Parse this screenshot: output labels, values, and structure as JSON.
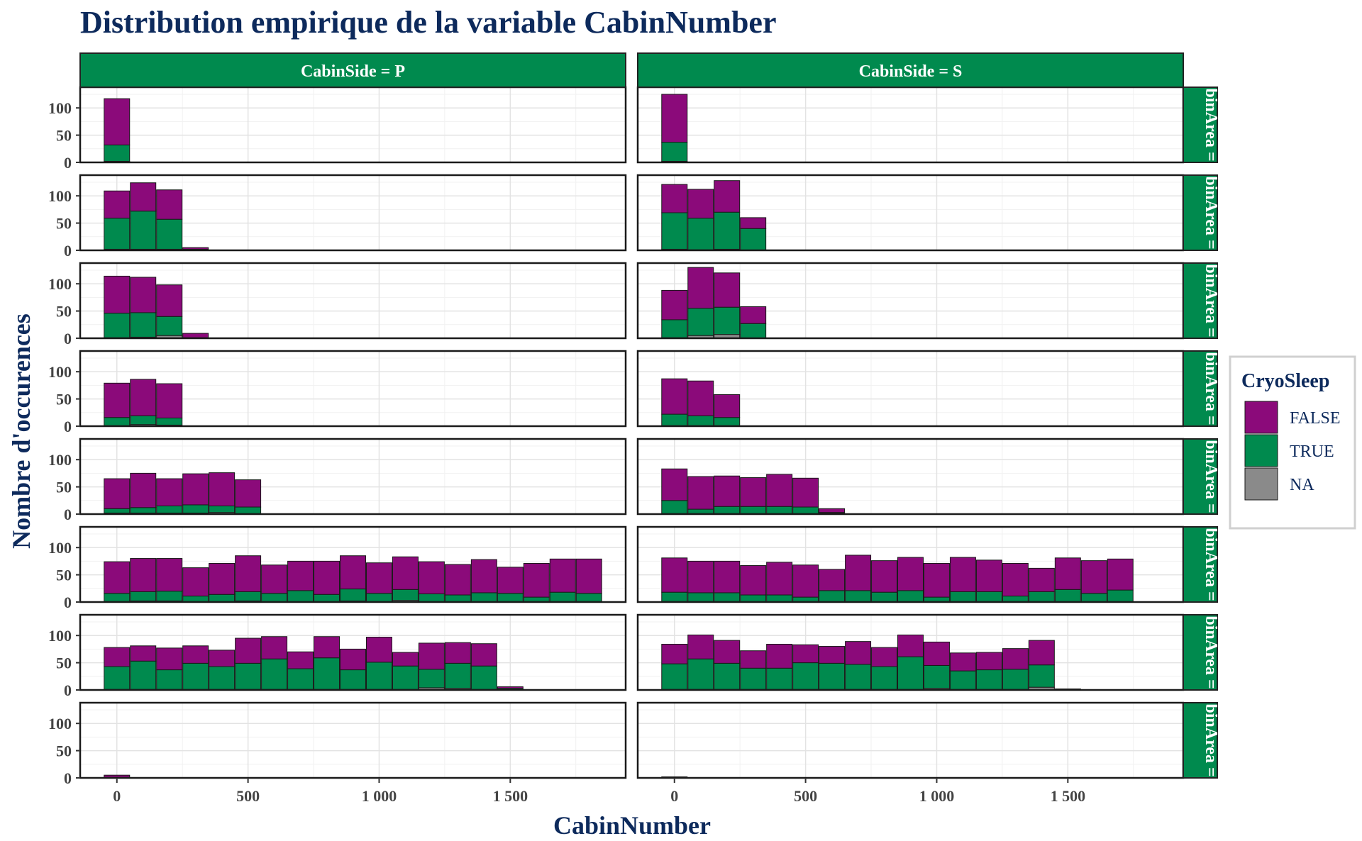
{
  "chart_data": {
    "type": "bar",
    "stacked": true,
    "title": "Distribution empirique de la variable CabinNumber",
    "xlabel": "CabinNumber",
    "ylabel": "Nombre d'occurences",
    "x_ticks": [
      0,
      500,
      1000,
      1500
    ],
    "x_tick_labels": [
      "0",
      "500",
      "1 000",
      "1 500"
    ],
    "y_ticks": [
      0,
      50,
      100
    ],
    "y_tick_labels": [
      "0",
      "50",
      "100"
    ],
    "xlim": [
      -140,
      1940
    ],
    "ylim": [
      0,
      138
    ],
    "bin_width": 100,
    "grid": true,
    "legend": {
      "title": "CryoSleep",
      "position": "right",
      "entries": [
        {
          "label": "FALSE",
          "color": "#8b0a7a"
        },
        {
          "label": "TRUE",
          "color": "#008a4e"
        },
        {
          "label": "NA",
          "color": "#8a8a8a"
        }
      ]
    },
    "columns": [
      "CabinSide = P",
      "CabinSide = S"
    ],
    "row_strip_label": "binArea = ",
    "colors": {
      "strip": "#008a4e",
      "FALSE": "#8b0a7a",
      "TRUE": "#008a4e",
      "NA": "#8a8a8a"
    },
    "panels": [
      [
        {
          "x": [
            0
          ],
          "na": [
            2
          ],
          "true_": [
            30
          ],
          "false_": [
            85
          ]
        }
      ],
      [
        {
          "x": [
            0
          ],
          "na": [
            2
          ],
          "true_": [
            35
          ],
          "false_": [
            88
          ]
        },
        {
          "x": [
            100
          ],
          "na": [
            2
          ],
          "true_": [
            2
          ],
          "false_": [
            10
          ]
        }
      ],
      [
        {
          "x": [
            0,
            100,
            200,
            300
          ],
          "na": [
            2,
            2,
            2,
            1
          ],
          "true_": [
            57,
            70,
            55,
            1
          ],
          "false_": [
            50,
            52,
            54,
            3
          ]
        }
      ],
      [
        {
          "x": [
            0,
            100,
            200,
            300
          ],
          "na": [
            2,
            1,
            2,
            0
          ],
          "true_": [
            67,
            58,
            68,
            40
          ],
          "false_": [
            52,
            53,
            58,
            20
          ]
        }
      ],
      [
        {
          "x": [
            0,
            100,
            200,
            300
          ],
          "na": [
            1,
            2,
            5,
            1
          ],
          "true_": [
            45,
            45,
            35,
            0
          ],
          "false_": [
            68,
            65,
            58,
            8
          ]
        }
      ],
      [
        {
          "x": [
            0,
            100,
            200,
            300
          ],
          "na": [
            1,
            5,
            7,
            0
          ],
          "true_": [
            33,
            50,
            50,
            27
          ],
          "false_": [
            54,
            75,
            63,
            31
          ]
        }
      ],
      [
        {
          "x": [
            0,
            100,
            200
          ],
          "na": [
            1,
            3,
            2
          ],
          "true_": [
            15,
            16,
            13
          ],
          "false_": [
            63,
            67,
            63
          ]
        }
      ],
      [
        {
          "x": [
            0,
            100,
            200
          ],
          "na": [
            1,
            1,
            1
          ],
          "true_": [
            21,
            18,
            15
          ],
          "false_": [
            65,
            64,
            42
          ]
        }
      ],
      [
        {
          "x": [
            0,
            100,
            200,
            300,
            400,
            500
          ],
          "na": [
            2,
            2,
            2,
            2,
            3,
            1
          ],
          "true_": [
            8,
            10,
            13,
            15,
            12,
            12
          ],
          "false_": [
            55,
            63,
            50,
            57,
            61,
            50
          ]
        }
      ],
      [
        {
          "x": [
            0,
            100,
            200,
            300,
            400,
            500,
            600
          ],
          "na": [
            1,
            1,
            1,
            1,
            1,
            1,
            2
          ],
          "true_": [
            24,
            8,
            13,
            13,
            13,
            12,
            1
          ],
          "false_": [
            58,
            60,
            56,
            53,
            59,
            53,
            7
          ]
        }
      ],
      [
        {
          "x": [
            0,
            100,
            200,
            300,
            400,
            500,
            600,
            700,
            800,
            900,
            1000,
            1100,
            1200,
            1300,
            1400,
            1500,
            1600,
            1700,
            1800
          ],
          "na": [
            1,
            2,
            2,
            1,
            1,
            2,
            1,
            1,
            1,
            2,
            1,
            3,
            1,
            1,
            1,
            1,
            1,
            1,
            1
          ],
          "true_": [
            15,
            17,
            18,
            10,
            13,
            17,
            15,
            20,
            13,
            22,
            15,
            20,
            14,
            12,
            16,
            15,
            8,
            17,
            15
          ],
          "false_": [
            58,
            61,
            60,
            52,
            57,
            66,
            52,
            54,
            61,
            61,
            56,
            60,
            59,
            56,
            61,
            48,
            62,
            61,
            63
          ]
        }
      ],
      [
        {
          "x": [
            0,
            100,
            200,
            300,
            400,
            500,
            600,
            700,
            800,
            900,
            1000,
            1100,
            1200,
            1300,
            1400,
            1500,
            1600,
            1700
          ],
          "na": [
            1,
            1,
            1,
            1,
            1,
            1,
            1,
            1,
            1,
            1,
            1,
            1,
            1,
            1,
            1,
            1,
            1,
            1
          ],
          "true_": [
            17,
            16,
            16,
            12,
            12,
            8,
            20,
            20,
            17,
            20,
            8,
            18,
            18,
            10,
            18,
            22,
            15,
            21
          ],
          "false_": [
            63,
            58,
            58,
            54,
            60,
            59,
            39,
            65,
            58,
            61,
            62,
            63,
            58,
            60,
            43,
            58,
            60,
            57
          ]
        }
      ],
      [
        {
          "x": [
            0,
            100,
            200,
            300,
            400,
            500,
            600,
            700,
            800,
            900,
            1000,
            1100,
            1200,
            1300,
            1400,
            1500
          ],
          "na": [
            1,
            1,
            1,
            1,
            1,
            1,
            1,
            1,
            1,
            1,
            1,
            1,
            4,
            3,
            1,
            1
          ],
          "true_": [
            42,
            52,
            36,
            48,
            42,
            48,
            56,
            38,
            58,
            36,
            50,
            43,
            34,
            46,
            43,
            2
          ],
          "false_": [
            35,
            28,
            40,
            32,
            30,
            46,
            41,
            31,
            39,
            38,
            46,
            25,
            48,
            38,
            41,
            3
          ]
        }
      ],
      [
        {
          "x": [
            0,
            100,
            200,
            300,
            400,
            500,
            600,
            700,
            800,
            900,
            1000,
            1100,
            1200,
            1300,
            1400,
            1500
          ],
          "na": [
            1,
            1,
            1,
            1,
            1,
            1,
            1,
            1,
            1,
            1,
            3,
            1,
            1,
            1,
            5,
            2
          ],
          "true_": [
            47,
            56,
            48,
            39,
            39,
            49,
            48,
            46,
            42,
            60,
            42,
            34,
            36,
            37,
            41,
            0
          ],
          "false_": [
            36,
            44,
            42,
            32,
            44,
            33,
            31,
            42,
            35,
            40,
            43,
            33,
            32,
            38,
            45,
            0
          ]
        }
      ],
      [
        {
          "x": [
            0
          ],
          "na": [
            1
          ],
          "true_": [
            0
          ],
          "false_": [
            4
          ]
        }
      ],
      [
        {
          "x": [
            0
          ],
          "na": [
            2
          ],
          "true_": [
            0
          ],
          "false_": [
            0
          ]
        }
      ]
    ]
  }
}
